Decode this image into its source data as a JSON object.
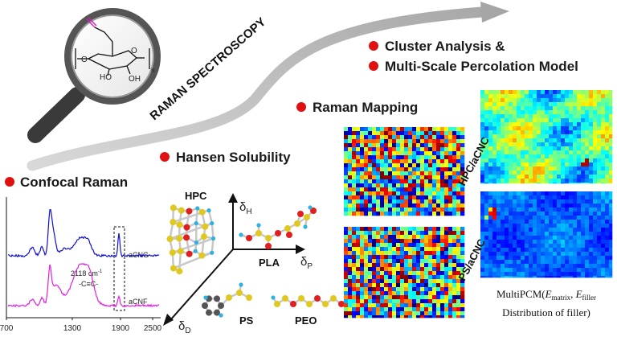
{
  "arrow_label": "RAMAN SPECTROSCOPY",
  "sections": {
    "cluster": "Cluster Analysis &",
    "percolation": "Multi-Scale Percolation Model",
    "mapping": "Raman Mapping",
    "hansen": "Hansen Solubility",
    "confocal": "Confocal Raman"
  },
  "molecule": {
    "ho": "HO",
    "oh": "OH",
    "o1": "O",
    "o2": "O",
    "n": "n"
  },
  "spectrum": {
    "x_ticks": [
      "700",
      "1300",
      "1900",
      "2500"
    ],
    "top_label": "aCNC",
    "bottom_label": "aCNF",
    "peak_number": "2118 cm",
    "peak_unit_power": "-1",
    "peak_group": "-C≡C-"
  },
  "hansen": {
    "axis_symbol": "δ",
    "h": "H",
    "p": "P",
    "d": "D",
    "hpc": "HPC",
    "pla": "PLA",
    "ps": "PS",
    "peo": "PEO"
  },
  "maps": {
    "hpc_label": "HPC/aCNC",
    "ps_label": "PS/aCNC"
  },
  "model": {
    "prefix": "MultiPCM(",
    "e1": "E",
    "sub1": "matrix",
    "sep": ", ",
    "e2": "E",
    "sub2": "filler",
    "line2": "Distribution of filler)"
  }
}
